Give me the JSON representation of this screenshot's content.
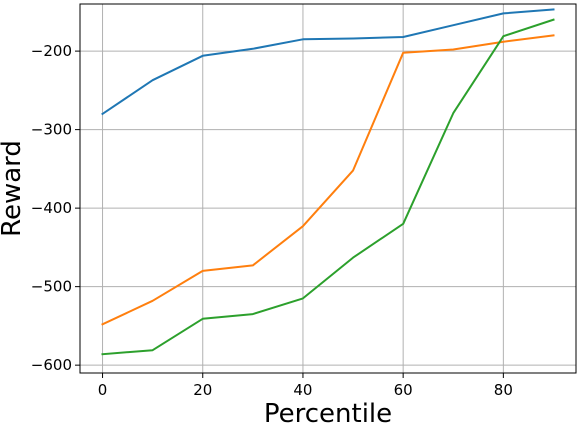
{
  "chart_data": {
    "type": "line",
    "title": "",
    "xlabel": "Percentile",
    "ylabel": "Reward",
    "x": [
      0,
      10,
      20,
      30,
      40,
      50,
      60,
      70,
      80,
      90
    ],
    "xlim": [
      -4.5,
      94.5
    ],
    "ylim": [
      -610,
      -140
    ],
    "xticks": [
      0,
      20,
      40,
      60,
      80
    ],
    "yticks": [
      -600,
      -500,
      -400,
      -300,
      -200
    ],
    "xtick_labels": [
      "0",
      "20",
      "40",
      "60",
      "80"
    ],
    "ytick_labels": [
      "−600",
      "−500",
      "−400",
      "−300",
      "−200"
    ],
    "grid": true,
    "legend": "none",
    "series": [
      {
        "color": "#1f77b4",
        "values": [
          -280,
          -237,
          -206,
          -197,
          -185,
          -184,
          -182,
          -167,
          -152,
          -147
        ]
      },
      {
        "color": "#ff7f0e",
        "values": [
          -548,
          -518,
          -480,
          -473,
          -423,
          -352,
          -202,
          -198,
          -188,
          -180
        ]
      },
      {
        "color": "#2ca02c",
        "values": [
          -586,
          -581,
          -541,
          -535,
          -515,
          -463,
          -420,
          -279,
          -181,
          -160
        ]
      }
    ]
  }
}
